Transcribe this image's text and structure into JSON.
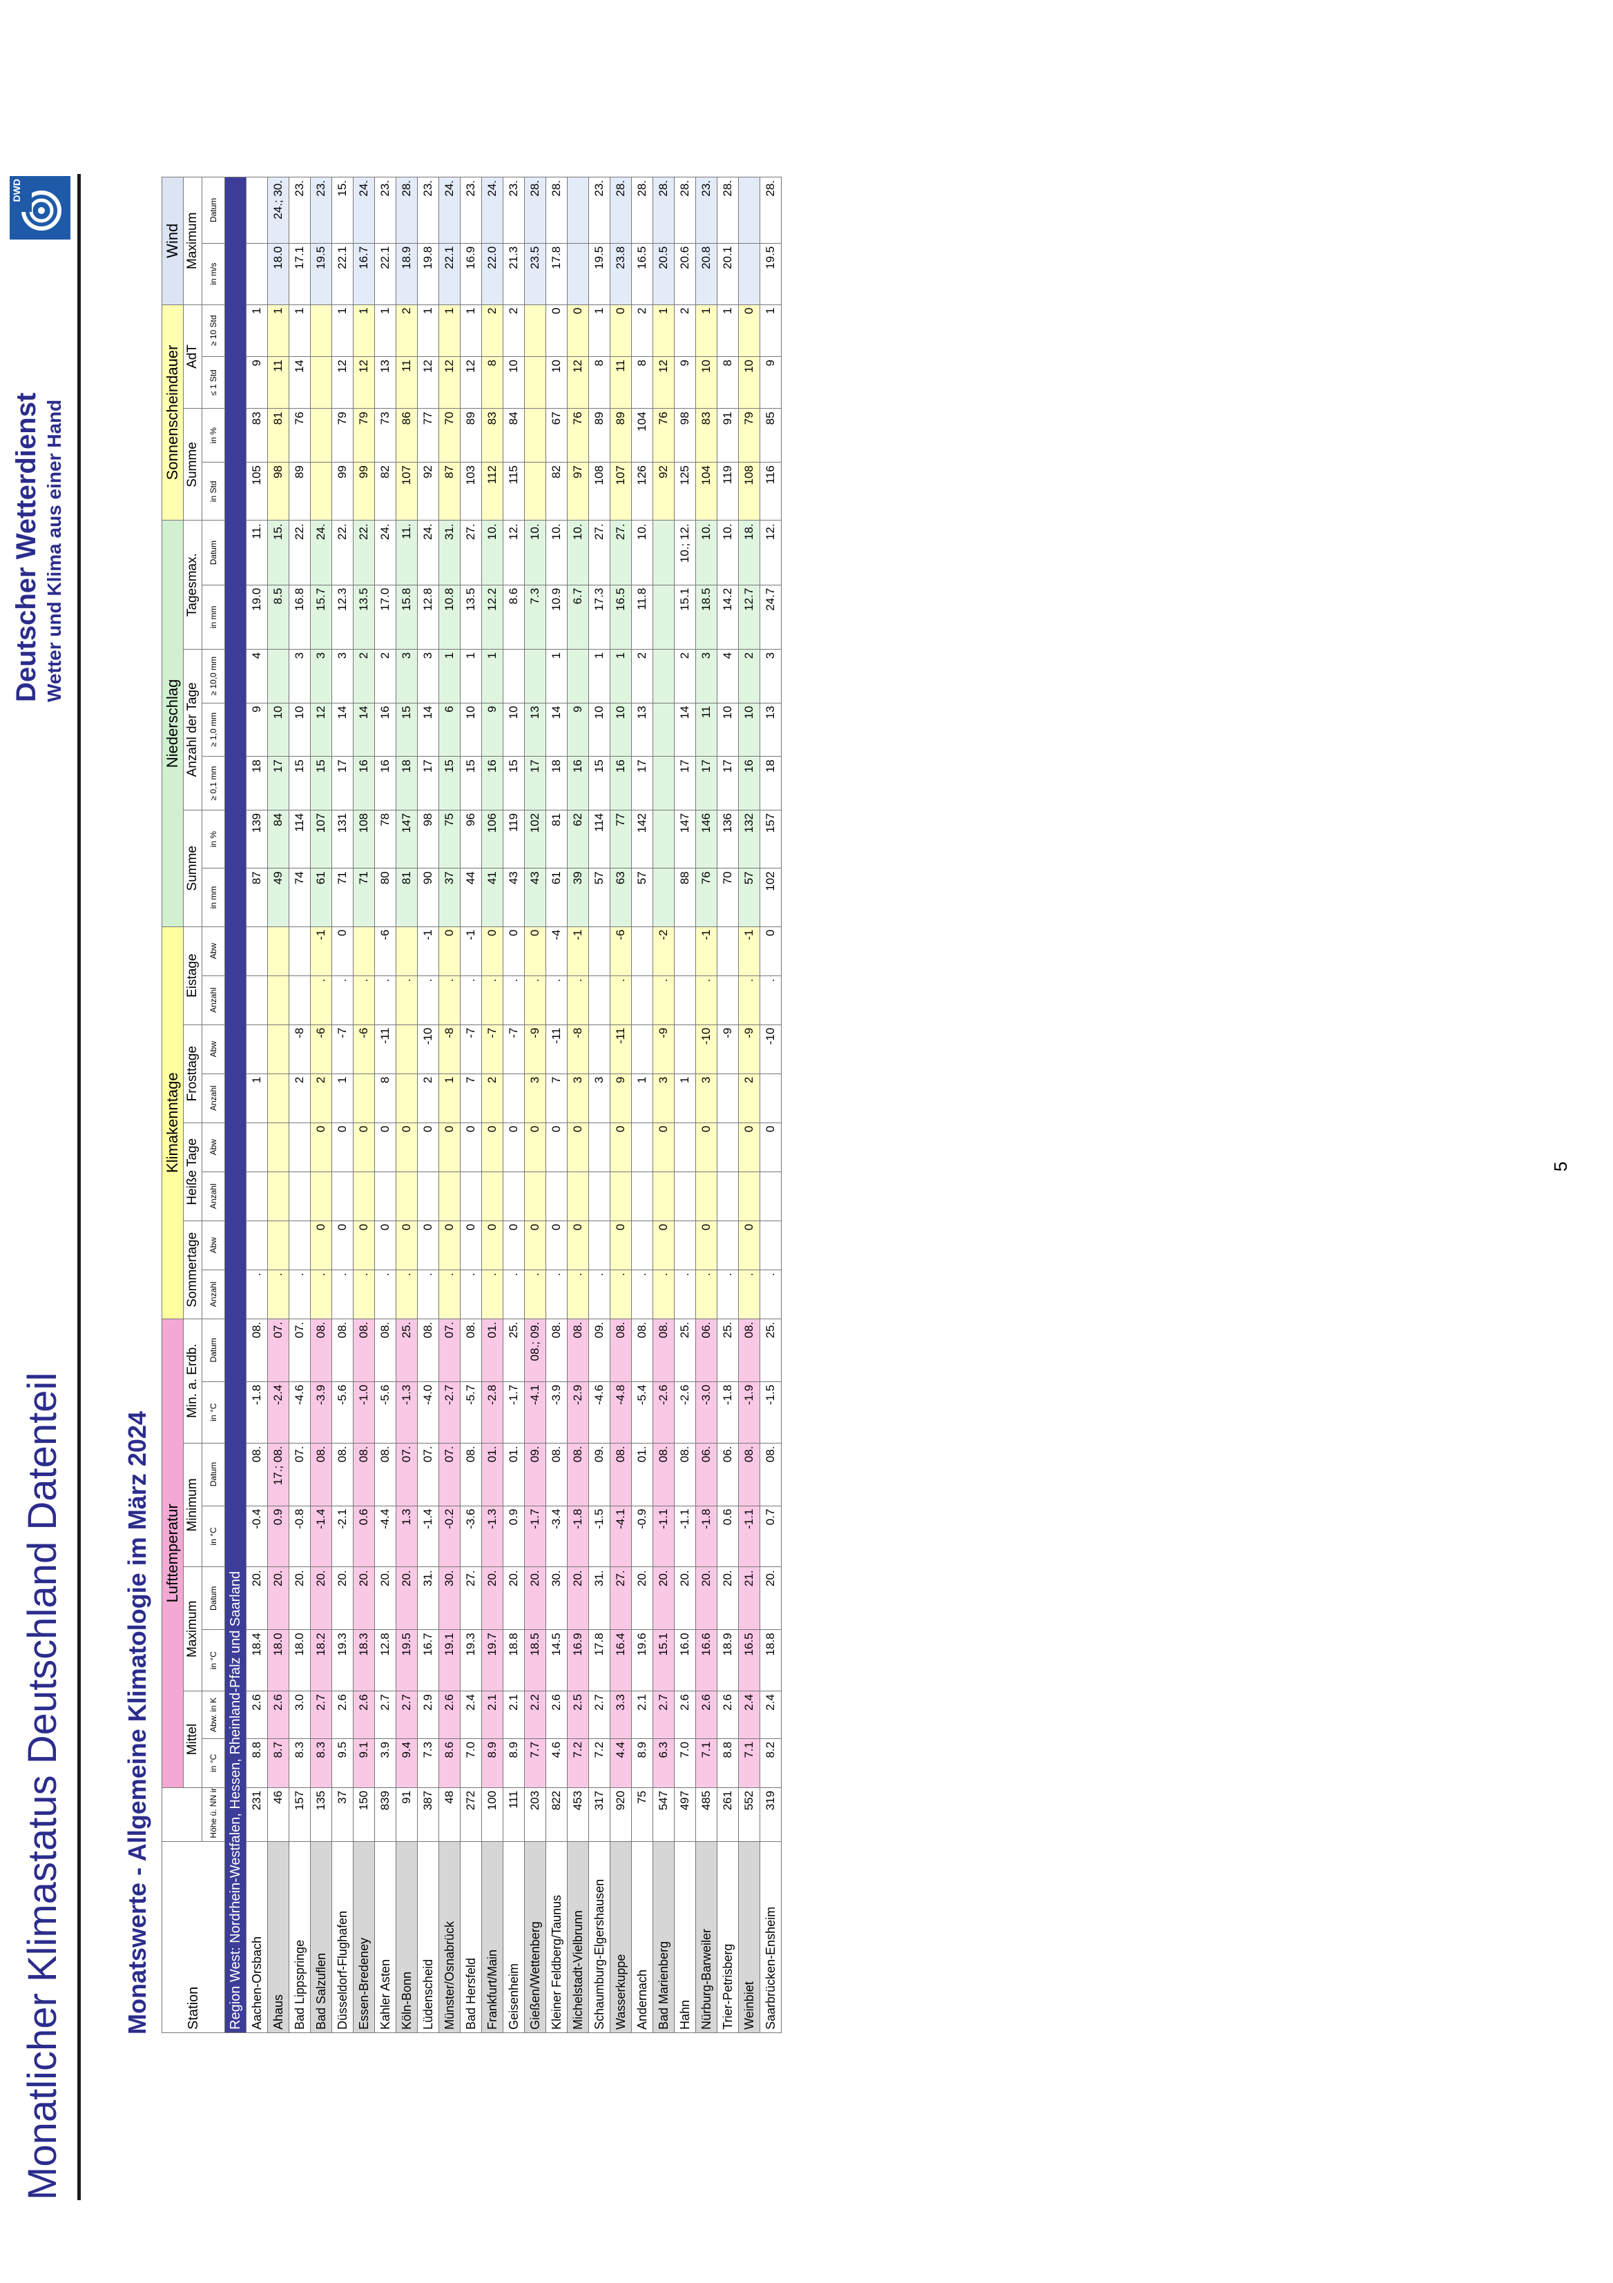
{
  "header": {
    "title": "Monatlicher Klimastatus Deutschland Datenteil",
    "subtitle": "Monatswerte - Allgemeine Klimatologie im März 2024",
    "org_name": "Deutscher Wetterdienst",
    "org_tagline": "Wetter und Klima aus einer Hand",
    "logo_text": "DWD"
  },
  "page_number": "5",
  "table": {
    "groups": {
      "station": "Station",
      "lufttemperatur": "Lufttemperatur",
      "klimakenntage": "Klimakenntage",
      "niederschlag": "Niederschlag",
      "sonnenscheindauer": "Sonnenscheindauer",
      "wind": "Wind"
    },
    "subgroups": {
      "mittel": "Mittel",
      "maximum": "Maximum",
      "minimum": "Minimum",
      "min_erdb": "Min. a. Erdb.",
      "sommertage": "Sommertage",
      "heisse_tage": "Heiße Tage",
      "frosttage": "Frosttage",
      "eistage": "Eistage",
      "ns_summe": "Summe",
      "anzahl_tage": "Anzahl der Tage",
      "tagesmax": "Tagesmax.",
      "sd_summe": "Summe",
      "adt": "AdT",
      "wind_max": "Maximum"
    },
    "units": [
      "Höhe ü. NN in m",
      "in °C",
      "Abw. in K",
      "in °C",
      "Datum",
      "in °C",
      "Datum",
      "in °C",
      "Datum",
      "Anzahl",
      "Abw",
      "Anzahl",
      "Abw",
      "Anzahl",
      "Abw",
      "Anzahl",
      "Abw",
      "in mm",
      "in %",
      "≥ 0,1 mm",
      "≥ 1,0 mm",
      "≥ 10,0 mm",
      "in mm",
      "Datum",
      "in Std",
      "in %",
      "≤ 1 Std",
      "≥ 10 Std",
      "in m/s",
      "Datum"
    ],
    "region": "Region West: Nordrhein-Westfalen, Hessen, Rheinland-Pfalz und Saarland",
    "rows": [
      [
        "Aachen-Orsbach",
        "231",
        "8.8",
        "2.6",
        "18.4",
        "20.",
        "-0.4",
        "08.",
        "-1.8",
        "08.",
        ".",
        "",
        "",
        "",
        "1",
        "",
        "",
        "",
        "87",
        "139",
        "18",
        "9",
        "4",
        "19.0",
        "11.",
        "105",
        "83",
        "9",
        "1",
        "",
        ""
      ],
      [
        "Ahaus",
        "46",
        "8.7",
        "2.6",
        "18.0",
        "20.",
        "0.9",
        "17.; 08.",
        "-2.4",
        "07.",
        ".",
        "",
        "",
        "",
        "",
        "",
        "",
        "",
        "49",
        "84",
        "17",
        "10",
        "",
        "8.5",
        "15.",
        "98",
        "81",
        "11",
        "1",
        "18.0",
        "24.; 30."
      ],
      [
        "Bad Lippspringe",
        "157",
        "8.3",
        "3.0",
        "18.0",
        "20.",
        "-0.8",
        "07.",
        "-4.6",
        "07.",
        ".",
        "",
        "",
        "",
        "2",
        "-8",
        "",
        "",
        "74",
        "114",
        "15",
        "10",
        "3",
        "16.8",
        "22.",
        "89",
        "76",
        "14",
        "1",
        "17.1",
        "23."
      ],
      [
        "Bad Salzuflen",
        "135",
        "8.3",
        "2.7",
        "18.2",
        "20.",
        "-1.4",
        "08.",
        "-3.9",
        "08.",
        ".",
        "0",
        "",
        "0",
        "2",
        "-6",
        ".",
        "-1",
        "61",
        "107",
        "15",
        "12",
        "3",
        "15.7",
        "24.",
        "",
        "",
        "",
        "",
        "19.5",
        "23."
      ],
      [
        "Düsseldorf-Flughafen",
        "37",
        "9.5",
        "2.6",
        "19.3",
        "20.",
        "-2.1",
        "08.",
        "-5.6",
        "08.",
        ".",
        "0",
        "",
        "0",
        "1",
        "-7",
        ".",
        "0",
        "71",
        "131",
        "17",
        "14",
        "3",
        "12.3",
        "22.",
        "99",
        "79",
        "12",
        "1",
        "22.1",
        "15."
      ],
      [
        "Essen-Bredeney",
        "150",
        "9.1",
        "2.6",
        "18.3",
        "20.",
        "0.6",
        "08.",
        "-1.0",
        "08.",
        ".",
        "0",
        "",
        "0",
        "",
        "-6",
        ".",
        "",
        "71",
        "108",
        "16",
        "14",
        "2",
        "13.5",
        "22.",
        "99",
        "79",
        "12",
        "1",
        "16.7",
        "24."
      ],
      [
        "Kahler Asten",
        "839",
        "3.9",
        "2.7",
        "12.8",
        "20.",
        "-4.4",
        "08.",
        "-5.6",
        "08.",
        ".",
        "0",
        "",
        "0",
        "8",
        "-11",
        ".",
        "-6",
        "80",
        "78",
        "16",
        "16",
        "2",
        "17.0",
        "24.",
        "82",
        "73",
        "13",
        "1",
        "22.1",
        "23."
      ],
      [
        "Köln-Bonn",
        "91",
        "9.4",
        "2.7",
        "19.5",
        "20.",
        "1.3",
        "07.",
        "-1.3",
        "25.",
        ".",
        "0",
        "",
        "0",
        "",
        "",
        ".",
        "",
        "81",
        "147",
        "18",
        "15",
        "3",
        "15.8",
        "11.",
        "107",
        "86",
        "11",
        "2",
        "18.9",
        "28."
      ],
      [
        "Lüdenscheid",
        "387",
        "7.3",
        "2.9",
        "16.7",
        "31.",
        "-1.4",
        "07.",
        "-4.0",
        "08.",
        ".",
        "0",
        "",
        "0",
        "2",
        "-10",
        ".",
        "-1",
        "90",
        "98",
        "17",
        "14",
        "3",
        "12.8",
        "24.",
        "92",
        "77",
        "12",
        "1",
        "19.8",
        "23."
      ],
      [
        "Münster/Osnabrück",
        "48",
        "8.6",
        "2.6",
        "19.1",
        "30.",
        "-0.2",
        "07.",
        "-2.7",
        "07.",
        ".",
        "0",
        "",
        "0",
        "1",
        "-8",
        ".",
        "0",
        "37",
        "75",
        "15",
        "6",
        "1",
        "10.8",
        "31.",
        "87",
        "70",
        "12",
        "1",
        "22.1",
        "24."
      ],
      [
        "Bad Hersfeld",
        "272",
        "7.0",
        "2.4",
        "19.3",
        "27.",
        "-3.6",
        "08.",
        "-5.7",
        "08.",
        ".",
        "0",
        "",
        "0",
        "7",
        "-7",
        ".",
        "-1",
        "44",
        "96",
        "15",
        "10",
        "1",
        "13.5",
        "27.",
        "103",
        "89",
        "12",
        "1",
        "16.9",
        "23."
      ],
      [
        "Frankfurt/Main",
        "100",
        "8.9",
        "2.1",
        "19.7",
        "20.",
        "-1.3",
        "01.",
        "-2.8",
        "01.",
        ".",
        "0",
        "",
        "0",
        "2",
        "-7",
        ".",
        "0",
        "41",
        "106",
        "16",
        "9",
        "1",
        "12.2",
        "10.",
        "112",
        "83",
        "8",
        "2",
        "22.0",
        "24."
      ],
      [
        "Geisenheim",
        "111",
        "8.9",
        "2.1",
        "18.8",
        "20.",
        "0.9",
        "01.",
        "-1.7",
        "25.",
        ".",
        "0",
        "",
        "0",
        "",
        "-7",
        ".",
        "0",
        "43",
        "119",
        "15",
        "10",
        "",
        "8.6",
        "12.",
        "115",
        "84",
        "10",
        "2",
        "21.3",
        "23."
      ],
      [
        "Gießen/Wettenberg",
        "203",
        "7.7",
        "2.2",
        "18.5",
        "20.",
        "-1.7",
        "09.",
        "-4.1",
        "08.; 09.",
        ".",
        "0",
        "",
        "0",
        "3",
        "-9",
        ".",
        "0",
        "43",
        "102",
        "17",
        "13",
        "",
        "7.3",
        "10.",
        "",
        "",
        "",
        "",
        "23.5",
        "28."
      ],
      [
        "Kleiner Feldberg/Taunus",
        "822",
        "4.6",
        "2.6",
        "14.5",
        "30.",
        "-3.4",
        "08.",
        "-3.9",
        "08.",
        ".",
        "0",
        "",
        "0",
        "7",
        "-11",
        ".",
        "-4",
        "61",
        "81",
        "18",
        "14",
        "1",
        "10.9",
        "10.",
        "82",
        "67",
        "10",
        "0",
        "17.8",
        "28."
      ],
      [
        "Michelstadt-Vielbrunn",
        "453",
        "7.2",
        "2.5",
        "16.9",
        "20.",
        "-1.8",
        "08.",
        "-2.9",
        "08.",
        ".",
        "0",
        "",
        "0",
        "3",
        "-8",
        ".",
        "-1",
        "39",
        "62",
        "16",
        "9",
        "",
        "6.7",
        "10.",
        "97",
        "76",
        "12",
        "0",
        "",
        ""
      ],
      [
        "Schaumburg-Elgershausen",
        "317",
        "7.2",
        "2.7",
        "17.8",
        "31.",
        "-1.5",
        "09.",
        "-4.6",
        "09.",
        ".",
        "",
        "",
        "",
        "3",
        "",
        "",
        "",
        "57",
        "114",
        "15",
        "10",
        "1",
        "17.3",
        "27.",
        "108",
        "89",
        "8",
        "1",
        "19.5",
        "23."
      ],
      [
        "Wasserkuppe",
        "920",
        "4.4",
        "3.3",
        "16.4",
        "27.",
        "-4.1",
        "08.",
        "-4.8",
        "08.",
        ".",
        "0",
        "",
        "0",
        "9",
        "-11",
        ".",
        "-6",
        "63",
        "77",
        "16",
        "10",
        "1",
        "16.5",
        "27.",
        "107",
        "89",
        "11",
        "0",
        "23.8",
        "28."
      ],
      [
        "Andernach",
        "75",
        "8.9",
        "2.1",
        "19.6",
        "20.",
        "-0.9",
        "01.",
        "-5.4",
        "08.",
        ".",
        "",
        "",
        "",
        "1",
        "",
        "",
        "",
        "57",
        "142",
        "17",
        "13",
        "2",
        "11.8",
        "10.",
        "126",
        "104",
        "8",
        "2",
        "16.5",
        "28."
      ],
      [
        "Bad Marienberg",
        "547",
        "6.3",
        "2.7",
        "15.1",
        "20.",
        "-1.1",
        "08.",
        "-2.6",
        "08.",
        ".",
        "0",
        "",
        "0",
        "3",
        "-9",
        ".",
        "-2",
        "",
        "",
        "",
        "",
        "",
        "",
        "",
        "92",
        "76",
        "12",
        "1",
        "20.5",
        "28."
      ],
      [
        "Hahn",
        "497",
        "7.0",
        "2.6",
        "16.0",
        "20.",
        "-1.1",
        "08.",
        "-2.6",
        "25.",
        ".",
        "",
        "",
        "",
        "1",
        "",
        "",
        "",
        "88",
        "147",
        "17",
        "14",
        "2",
        "15.1",
        "10.; 12.",
        "125",
        "98",
        "9",
        "2",
        "20.6",
        "28."
      ],
      [
        "Nürburg-Barweiler",
        "485",
        "7.1",
        "2.6",
        "16.6",
        "20.",
        "-1.8",
        "06.",
        "-3.0",
        "06.",
        ".",
        "0",
        "",
        "0",
        "3",
        "-10",
        ".",
        "-1",
        "76",
        "146",
        "17",
        "11",
        "3",
        "18.5",
        "10.",
        "104",
        "83",
        "10",
        "1",
        "20.8",
        "23."
      ],
      [
        "Trier-Petrisberg",
        "261",
        "8.8",
        "2.6",
        "18.9",
        "20.",
        "0.6",
        "06.",
        "-1.8",
        "25.",
        ".",
        "",
        "",
        "",
        "",
        "-9",
        "",
        "",
        "70",
        "136",
        "17",
        "10",
        "4",
        "14.2",
        "10.",
        "119",
        "91",
        "8",
        "1",
        "20.1",
        "28."
      ],
      [
        "Weinbiet",
        "552",
        "7.1",
        "2.4",
        "16.5",
        "21.",
        "-1.1",
        "08.",
        "-1.9",
        "08.",
        ".",
        "0",
        "",
        "0",
        "2",
        "-9",
        ".",
        "-1",
        "57",
        "132",
        "16",
        "10",
        "2",
        "12.7",
        "18.",
        "108",
        "79",
        "10",
        "0",
        "",
        ""
      ],
      [
        "Saarbrücken-Ensheim",
        "319",
        "8.2",
        "2.4",
        "18.8",
        "20.",
        "0.7",
        "08.",
        "-1.5",
        "25.",
        ".",
        "",
        "",
        "0",
        "",
        "-10",
        ".",
        "0",
        "102",
        "157",
        "18",
        "13",
        "3",
        "24.7",
        "12.",
        "116",
        "85",
        "9",
        "1",
        "19.5",
        "28."
      ]
    ]
  }
}
